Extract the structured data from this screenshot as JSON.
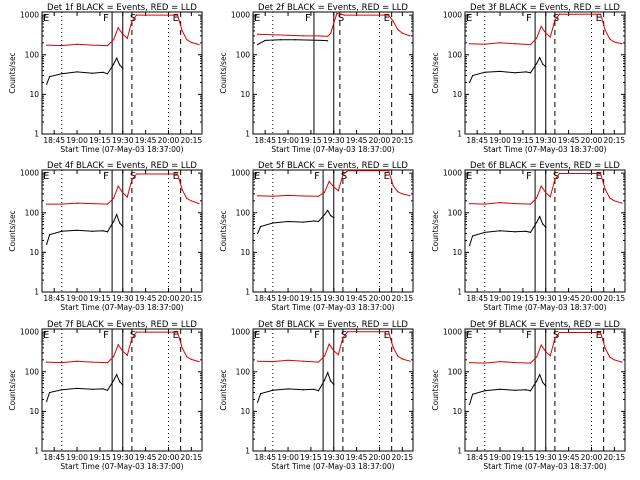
{
  "chart_data": [
    {
      "type": "line",
      "title": "Det 1f BLACK = Events, RED = LLD",
      "xlabel": "Start Time (07-May-03 18:37:00)",
      "ylabel": "Counts/sec",
      "x_ticks": [
        "18:45",
        "19:00",
        "19:15",
        "19:30",
        "19:45",
        "20:00",
        "20:15"
      ],
      "y_ticks": [
        "1",
        "10",
        "100",
        "1000"
      ],
      "ylim": [
        1,
        1200
      ],
      "yscale": "log",
      "grid": false,
      "series": [
        {
          "color": "#000000",
          "x": [
            "18:40",
            "18:42",
            "18:50",
            "19:00",
            "19:10",
            "19:17",
            "19:20",
            "19:24",
            "19:26",
            "19:28",
            "19:30"
          ],
          "values": [
            18,
            28,
            33,
            37,
            34,
            36,
            33,
            58,
            82,
            55,
            45
          ]
        },
        {
          "color": "#e00000",
          "x": [
            "18:40",
            "18:50",
            "19:00",
            "19:10",
            "19:20",
            "19:24",
            "19:27",
            "19:30",
            "19:33",
            "19:36",
            "19:39",
            "20:06",
            "20:09",
            "20:12",
            "20:15",
            "20:20"
          ],
          "values": [
            175,
            170,
            185,
            175,
            170,
            240,
            480,
            330,
            260,
            700,
            1000,
            1000,
            400,
            240,
            205,
            180
          ]
        }
      ],
      "markers": [
        {
          "type": "solid",
          "x": "19:23"
        },
        {
          "type": "solid",
          "x": "19:30"
        },
        {
          "type": "dashed",
          "x": "19:36"
        },
        {
          "type": "dashed",
          "x": "20:08"
        }
      ],
      "flags": [
        "F",
        "S",
        "E"
      ]
    },
    {
      "type": "line",
      "title": "Det 2f BLACK = Events, RED = LLD",
      "xlabel": "Start Time (07-May-03 18:37:00)",
      "ylabel": "Counts/sec",
      "x_ticks": [
        "18:45",
        "19:00",
        "19:15",
        "19:30",
        "19:45",
        "20:00",
        "20:15"
      ],
      "y_ticks": [
        "1",
        "10",
        "100",
        "1000"
      ],
      "ylim": [
        1,
        1200
      ],
      "yscale": "log",
      "grid": false,
      "series": [
        {
          "color": "#000000",
          "x": [
            "18:40",
            "18:45",
            "18:55",
            "19:05",
            "19:15",
            "19:22",
            "19:26"
          ],
          "values": [
            180,
            230,
            240,
            240,
            235,
            230,
            225
          ]
        },
        {
          "color": "#e00000",
          "x": [
            "18:40",
            "18:50",
            "19:00",
            "19:10",
            "19:20",
            "19:26",
            "19:28",
            "19:32",
            "19:35",
            "19:37",
            "20:06",
            "20:09",
            "20:12",
            "20:15",
            "20:20"
          ],
          "values": [
            330,
            320,
            310,
            300,
            300,
            290,
            350,
            1100,
            1050,
            1000,
            1000,
            700,
            430,
            350,
            300
          ]
        }
      ],
      "markers": [
        {
          "type": "solid",
          "x": "19:17"
        },
        {
          "type": "solid",
          "x": "19:30"
        },
        {
          "type": "dashed",
          "x": "19:34"
        },
        {
          "type": "dashed",
          "x": "20:08"
        }
      ],
      "flags": [
        "F",
        "S",
        "E"
      ]
    },
    {
      "type": "line",
      "title": "Det 3f BLACK = Events, RED = LLD",
      "xlabel": "Start Time (07-May-03 18:37:00)",
      "ylabel": "Counts/sec",
      "x_ticks": [
        "18:45",
        "19:00",
        "19:15",
        "19:30",
        "19:45",
        "20:00",
        "20:15"
      ],
      "y_ticks": [
        "1",
        "10",
        "100",
        "1000"
      ],
      "ylim": [
        1,
        1200
      ],
      "yscale": "log",
      "grid": false,
      "series": [
        {
          "color": "#000000",
          "x": [
            "18:40",
            "18:42",
            "18:50",
            "19:00",
            "19:10",
            "19:17",
            "19:20",
            "19:24",
            "19:26",
            "19:28",
            "19:30"
          ],
          "values": [
            20,
            30,
            36,
            38,
            35,
            37,
            35,
            60,
            85,
            58,
            50
          ]
        },
        {
          "color": "#e00000",
          "x": [
            "18:40",
            "18:50",
            "19:00",
            "19:10",
            "19:20",
            "19:24",
            "19:27",
            "19:30",
            "19:33",
            "19:36",
            "19:39",
            "20:06",
            "20:09",
            "20:12",
            "20:15",
            "20:20"
          ],
          "values": [
            190,
            185,
            200,
            190,
            180,
            260,
            520,
            350,
            280,
            750,
            1050,
            1050,
            420,
            250,
            210,
            190
          ]
        }
      ],
      "markers": [
        {
          "type": "solid",
          "x": "19:23"
        },
        {
          "type": "solid",
          "x": "19:30"
        },
        {
          "type": "dashed",
          "x": "19:36"
        },
        {
          "type": "dashed",
          "x": "20:08"
        }
      ],
      "flags": [
        "F",
        "S",
        "E"
      ]
    },
    {
      "type": "line",
      "title": "Det 4f BLACK = Events, RED = LLD",
      "xlabel": "Start Time (07-May-03 18:37:00)",
      "ylabel": "Counts/sec",
      "x_ticks": [
        "18:45",
        "19:00",
        "19:15",
        "19:30",
        "19:45",
        "20:00",
        "20:15"
      ],
      "y_ticks": [
        "1",
        "10",
        "100",
        "1000"
      ],
      "ylim": [
        1,
        1200
      ],
      "yscale": "log",
      "grid": false,
      "series": [
        {
          "color": "#000000",
          "x": [
            "18:40",
            "18:42",
            "18:50",
            "19:00",
            "19:10",
            "19:17",
            "19:20",
            "19:24",
            "19:26",
            "19:28",
            "19:30"
          ],
          "values": [
            16,
            28,
            34,
            36,
            34,
            35,
            33,
            60,
            90,
            55,
            45
          ]
        },
        {
          "color": "#e00000",
          "x": [
            "18:40",
            "18:50",
            "19:00",
            "19:10",
            "19:20",
            "19:24",
            "19:27",
            "19:30",
            "19:33",
            "19:36",
            "19:39",
            "20:06",
            "20:09",
            "20:12",
            "20:15",
            "20:20"
          ],
          "values": [
            165,
            165,
            175,
            170,
            165,
            230,
            470,
            320,
            250,
            680,
            950,
            950,
            380,
            230,
            200,
            170
          ]
        }
      ],
      "markers": [
        {
          "type": "solid",
          "x": "19:23"
        },
        {
          "type": "solid",
          "x": "19:30"
        },
        {
          "type": "dashed",
          "x": "19:36"
        },
        {
          "type": "dashed",
          "x": "20:08"
        }
      ],
      "flags": [
        "F",
        "S",
        "E"
      ]
    },
    {
      "type": "line",
      "title": "Det 5f BLACK = Events, RED = LLD",
      "xlabel": "Start Time (07-May-03 18:37:00)",
      "ylabel": "Counts/sec",
      "x_ticks": [
        "18:45",
        "19:00",
        "19:15",
        "19:30",
        "19:45",
        "20:00",
        "20:15"
      ],
      "y_ticks": [
        "1",
        "10",
        "100",
        "1000"
      ],
      "ylim": [
        1,
        1200
      ],
      "yscale": "log",
      "grid": false,
      "series": [
        {
          "color": "#000000",
          "x": [
            "18:40",
            "18:42",
            "18:50",
            "19:00",
            "19:10",
            "19:17",
            "19:20",
            "19:24",
            "19:26",
            "19:28",
            "19:30"
          ],
          "values": [
            30,
            45,
            55,
            60,
            58,
            62,
            60,
            90,
            115,
            85,
            75
          ]
        },
        {
          "color": "#e00000",
          "x": [
            "18:40",
            "18:50",
            "19:00",
            "19:10",
            "19:20",
            "19:24",
            "19:27",
            "19:30",
            "19:33",
            "19:36",
            "19:39",
            "20:06",
            "20:09",
            "20:12",
            "20:15",
            "20:20"
          ],
          "values": [
            270,
            260,
            275,
            265,
            260,
            330,
            620,
            450,
            360,
            900,
            1150,
            1150,
            480,
            340,
            300,
            270
          ]
        }
      ],
      "markers": [
        {
          "type": "solid",
          "x": "19:23"
        },
        {
          "type": "solid",
          "x": "19:30"
        },
        {
          "type": "dashed",
          "x": "19:36"
        },
        {
          "type": "dashed",
          "x": "20:08"
        }
      ],
      "flags": [
        "F",
        "S",
        "E"
      ]
    },
    {
      "type": "line",
      "title": "Det 6f BLACK = Events, RED = LLD",
      "xlabel": "Start Time (07-May-03 18:37:00)",
      "ylabel": "Counts/sec",
      "x_ticks": [
        "18:45",
        "19:00",
        "19:15",
        "19:30",
        "19:45",
        "20:00",
        "20:15"
      ],
      "y_ticks": [
        "1",
        "10",
        "100",
        "1000"
      ],
      "ylim": [
        1,
        1200
      ],
      "yscale": "log",
      "grid": false,
      "series": [
        {
          "color": "#000000",
          "x": [
            "18:40",
            "18:42",
            "18:50",
            "19:00",
            "19:10",
            "19:17",
            "19:20",
            "19:24",
            "19:26",
            "19:28",
            "19:30"
          ],
          "values": [
            15,
            26,
            32,
            35,
            33,
            34,
            32,
            57,
            80,
            52,
            43
          ]
        },
        {
          "color": "#e00000",
          "x": [
            "18:40",
            "18:50",
            "19:00",
            "19:10",
            "19:20",
            "19:24",
            "19:27",
            "19:30",
            "19:33",
            "19:36",
            "19:39",
            "20:06",
            "20:09",
            "20:12",
            "20:15",
            "20:20"
          ],
          "values": [
            170,
            165,
            180,
            170,
            165,
            235,
            470,
            320,
            255,
            690,
            980,
            980,
            390,
            235,
            200,
            175
          ]
        }
      ],
      "markers": [
        {
          "type": "solid",
          "x": "19:23"
        },
        {
          "type": "solid",
          "x": "19:30"
        },
        {
          "type": "dashed",
          "x": "19:36"
        },
        {
          "type": "dashed",
          "x": "20:08"
        }
      ],
      "flags": [
        "F",
        "S",
        "E"
      ]
    },
    {
      "type": "line",
      "title": "Det 7f BLACK = Events, RED = LLD",
      "xlabel": "Start Time (07-May-03 18:37:00)",
      "ylabel": "Counts/sec",
      "x_ticks": [
        "18:45",
        "19:00",
        "19:15",
        "19:30",
        "19:45",
        "20:00",
        "20:15"
      ],
      "y_ticks": [
        "1",
        "10",
        "100",
        "1000"
      ],
      "ylim": [
        1,
        1200
      ],
      "yscale": "log",
      "grid": false,
      "series": [
        {
          "color": "#000000",
          "x": [
            "18:40",
            "18:42",
            "18:50",
            "19:00",
            "19:10",
            "19:17",
            "19:20",
            "19:24",
            "19:26",
            "19:28",
            "19:30"
          ],
          "values": [
            18,
            30,
            35,
            38,
            36,
            37,
            34,
            60,
            85,
            56,
            46
          ]
        },
        {
          "color": "#e00000",
          "x": [
            "18:40",
            "18:50",
            "19:00",
            "19:10",
            "19:20",
            "19:24",
            "19:27",
            "19:30",
            "19:33",
            "19:36",
            "19:39",
            "20:06",
            "20:09",
            "20:12",
            "20:15",
            "20:20"
          ],
          "values": [
            175,
            170,
            185,
            175,
            170,
            240,
            480,
            330,
            260,
            700,
            1000,
            1000,
            400,
            240,
            205,
            180
          ]
        }
      ],
      "markers": [
        {
          "type": "solid",
          "x": "19:23"
        },
        {
          "type": "solid",
          "x": "19:30"
        },
        {
          "type": "dashed",
          "x": "19:36"
        },
        {
          "type": "dashed",
          "x": "20:08"
        }
      ],
      "flags": [
        "F",
        "S",
        "E"
      ]
    },
    {
      "type": "line",
      "title": "Det 8f BLACK = Events, RED = LLD",
      "xlabel": "Start Time (07-May-03 18:37:00)",
      "ylabel": "Counts/sec",
      "x_ticks": [
        "18:45",
        "19:00",
        "19:15",
        "19:30",
        "19:45",
        "20:00",
        "20:15"
      ],
      "y_ticks": [
        "1",
        "10",
        "100",
        "1000"
      ],
      "ylim": [
        1,
        1200
      ],
      "yscale": "log",
      "grid": false,
      "series": [
        {
          "color": "#000000",
          "x": [
            "18:40",
            "18:42",
            "18:50",
            "19:00",
            "19:10",
            "19:17",
            "19:20",
            "19:24",
            "19:26",
            "19:28",
            "19:30"
          ],
          "values": [
            17,
            28,
            34,
            37,
            35,
            36,
            33,
            62,
            95,
            58,
            48
          ]
        },
        {
          "color": "#e00000",
          "x": [
            "18:40",
            "18:50",
            "19:00",
            "19:10",
            "19:20",
            "19:24",
            "19:27",
            "19:30",
            "19:33",
            "19:36",
            "19:39",
            "20:06",
            "20:09",
            "20:12",
            "20:15",
            "20:20"
          ],
          "values": [
            185,
            180,
            195,
            185,
            175,
            250,
            500,
            340,
            270,
            720,
            1020,
            1020,
            410,
            250,
            210,
            185
          ]
        }
      ],
      "markers": [
        {
          "type": "solid",
          "x": "19:23"
        },
        {
          "type": "solid",
          "x": "19:30"
        },
        {
          "type": "dashed",
          "x": "19:36"
        },
        {
          "type": "dashed",
          "x": "20:08"
        }
      ],
      "flags": [
        "F",
        "S",
        "E"
      ]
    },
    {
      "type": "line",
      "title": "Det 9f BLACK = Events, RED = LLD",
      "xlabel": "Start Time (07-May-03 18:37:00)",
      "ylabel": "Counts/sec",
      "x_ticks": [
        "18:45",
        "19:00",
        "19:15",
        "19:30",
        "19:45",
        "20:00",
        "20:15"
      ],
      "y_ticks": [
        "1",
        "10",
        "100",
        "1000"
      ],
      "ylim": [
        1,
        1200
      ],
      "yscale": "log",
      "grid": false,
      "series": [
        {
          "color": "#000000",
          "x": [
            "18:40",
            "18:42",
            "18:50",
            "19:00",
            "19:10",
            "19:17",
            "19:20",
            "19:24",
            "19:26",
            "19:28",
            "19:30"
          ],
          "values": [
            15,
            27,
            33,
            36,
            34,
            35,
            33,
            58,
            85,
            54,
            44
          ]
        },
        {
          "color": "#e00000",
          "x": [
            "18:40",
            "18:50",
            "19:00",
            "19:10",
            "19:20",
            "19:24",
            "19:27",
            "19:30",
            "19:33",
            "19:36",
            "19:39",
            "20:06",
            "20:09",
            "20:12",
            "20:15",
            "20:20"
          ],
          "values": [
            170,
            165,
            180,
            170,
            165,
            235,
            470,
            320,
            255,
            690,
            980,
            980,
            390,
            235,
            200,
            175
          ]
        }
      ],
      "markers": [
        {
          "type": "solid",
          "x": "19:23"
        },
        {
          "type": "solid",
          "x": "19:30"
        },
        {
          "type": "dashed",
          "x": "19:36"
        },
        {
          "type": "dashed",
          "x": "20:08"
        }
      ],
      "flags": [
        "F",
        "S",
        "E"
      ]
    }
  ]
}
